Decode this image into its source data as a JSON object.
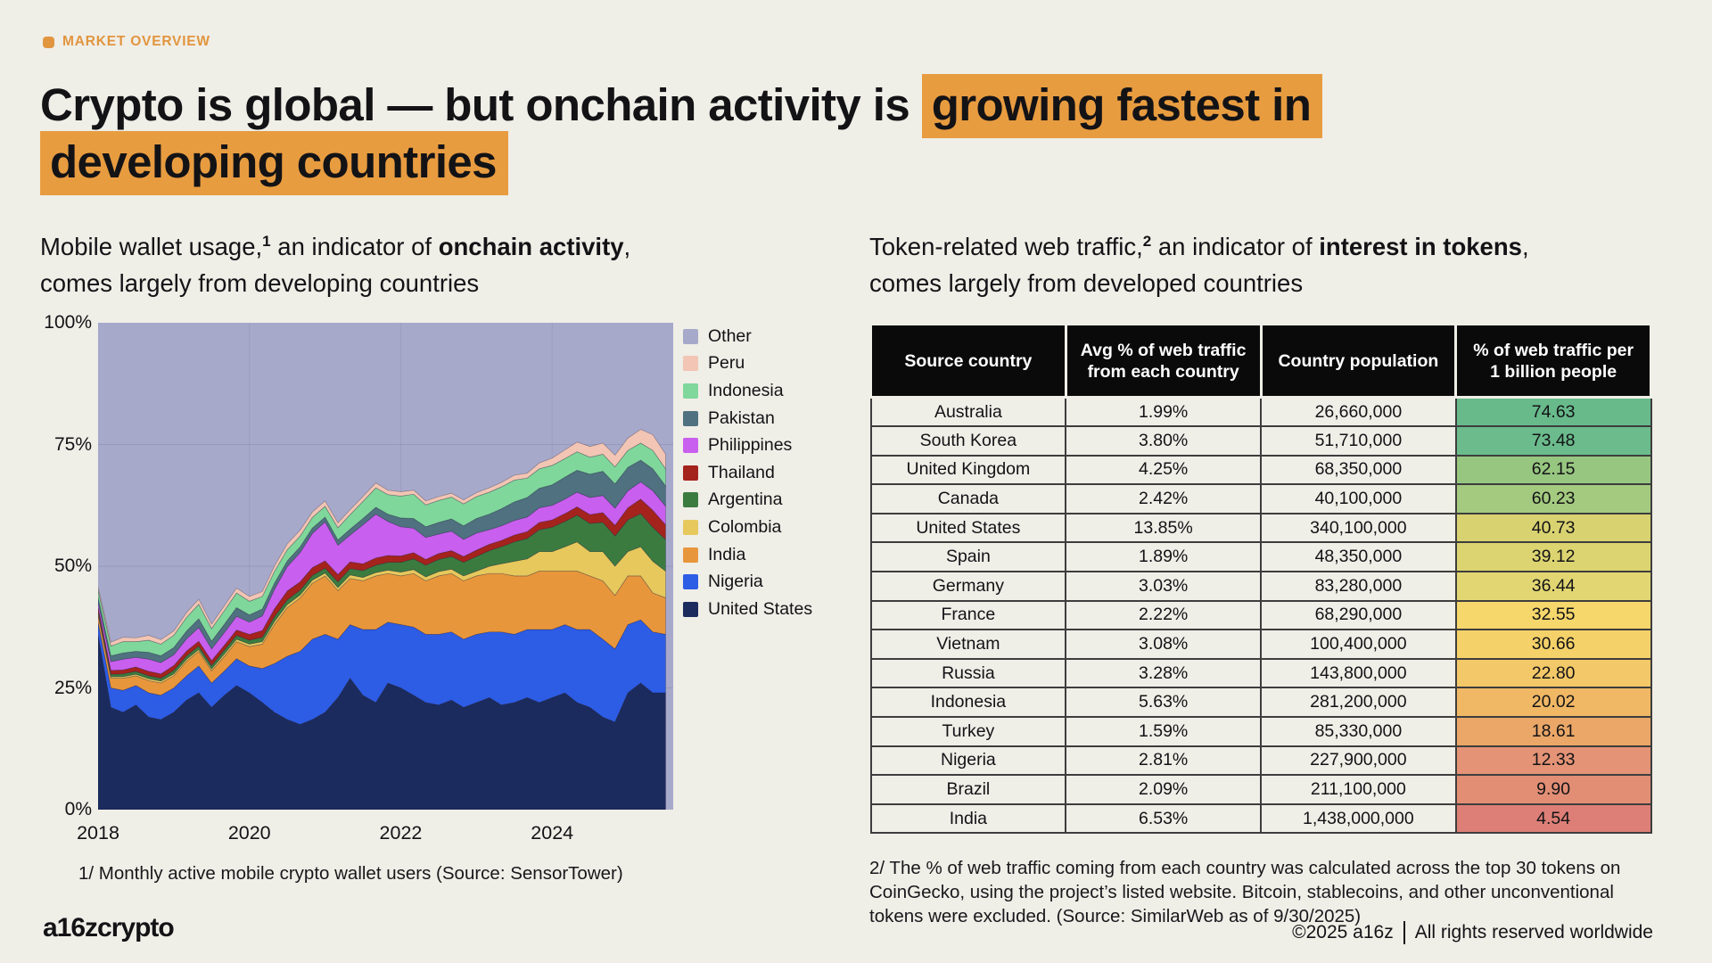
{
  "page": {
    "background": "#efeee7",
    "text_color": "#131316",
    "accent_orange": "#e89c40",
    "eyebrow_orange": "#e2953f"
  },
  "eyebrow": {
    "label": "MARKET OVERVIEW"
  },
  "title": {
    "lines": [
      [
        {
          "text": "Crypto is global — but onchain activity is ",
          "highlight": false
        },
        {
          "text": "growing fastest in",
          "highlight": true
        }
      ],
      [
        {
          "text": "developing countries",
          "highlight": true
        }
      ]
    ]
  },
  "left_panel": {
    "subtitle_lines": [
      [
        {
          "text": "Mobile wallet usage,"
        },
        {
          "text": "1",
          "sup": true
        },
        {
          "text": " an indicator of "
        },
        {
          "text": "onchain activity",
          "bold": true
        },
        {
          "text": ","
        }
      ],
      [
        {
          "text": "comes largely from developing countries"
        }
      ]
    ],
    "footnote": "1/ Monthly active mobile crypto wallet users (Source: SensorTower)"
  },
  "chart_data": {
    "type": "area",
    "stacked": true,
    "units": "percent of total, 0–100",
    "x_ticks": [
      "2018",
      "2020",
      "2022",
      "2024"
    ],
    "x_tick_years": [
      2018,
      2020,
      2022,
      2024
    ],
    "y_ticks": [
      "0%",
      "25%",
      "50%",
      "75%",
      "100%"
    ],
    "y_tick_values": [
      0,
      25,
      50,
      75,
      100
    ],
    "x_range": [
      2018,
      2025.6
    ],
    "y_range": [
      0,
      100
    ],
    "grid": "faint horizontal at 25/50/75 and vertical at 2020/2022/2024",
    "legend_position": "right",
    "legend_top_to_bottom": [
      {
        "label": "Other",
        "color": "#a7a9cb"
      },
      {
        "label": "Peru",
        "color": "#f2c5b4"
      },
      {
        "label": "Indonesia",
        "color": "#7fd79b"
      },
      {
        "label": "Pakistan",
        "color": "#4f7180"
      },
      {
        "label": "Philippines",
        "color": "#c95fee"
      },
      {
        "label": "Thailand",
        "color": "#a5231d"
      },
      {
        "label": "Argentina",
        "color": "#3b7b40"
      },
      {
        "label": "Colombia",
        "color": "#e6c85c"
      },
      {
        "label": "India",
        "color": "#e8963c"
      },
      {
        "label": "Nigeria",
        "color": "#2d5ce5"
      },
      {
        "label": "United States",
        "color": "#1b2b5e"
      }
    ],
    "other": {
      "name": "Other",
      "color": "#a7a9cb",
      "mode": "remainder to 100%"
    },
    "x": [
      2018,
      2018.17,
      2018.33,
      2018.5,
      2018.67,
      2018.83,
      2019,
      2019.17,
      2019.33,
      2019.5,
      2019.67,
      2019.83,
      2020,
      2020.17,
      2020.33,
      2020.5,
      2020.67,
      2020.83,
      2021,
      2021.17,
      2021.33,
      2021.5,
      2021.67,
      2021.83,
      2022,
      2022.17,
      2022.33,
      2022.5,
      2022.67,
      2022.83,
      2023,
      2023.17,
      2023.33,
      2023.5,
      2023.67,
      2023.83,
      2024,
      2024.17,
      2024.33,
      2024.5,
      2024.67,
      2024.83,
      2025,
      2025.17,
      2025.33,
      2025.5
    ],
    "series_bottom_to_top": [
      {
        "name": "United States",
        "color": "#1b2b5e",
        "values": [
          36,
          21,
          20,
          21.5,
          19,
          18.5,
          20,
          22.5,
          24,
          21,
          23.5,
          25.5,
          24,
          22,
          20,
          18.5,
          17.5,
          18.5,
          20,
          23,
          27,
          23.5,
          22,
          26,
          25,
          23.5,
          22,
          21.5,
          22.5,
          21,
          22,
          23,
          21.5,
          22,
          23,
          22,
          23,
          24,
          22,
          21,
          19,
          18,
          24,
          26,
          24,
          24
        ]
      },
      {
        "name": "Nigeria",
        "color": "#2d5ce5",
        "values": [
          2.5,
          4,
          4.5,
          4,
          5,
          5,
          5,
          5,
          5.5,
          5,
          5,
          5.5,
          5.5,
          7,
          10,
          13,
          15,
          16.5,
          16,
          12,
          11,
          13.5,
          15,
          12.5,
          13,
          14,
          14,
          14.5,
          14,
          14,
          14,
          13.5,
          15,
          14,
          14,
          15,
          14,
          14,
          15,
          16,
          16,
          15,
          14,
          13,
          12.5,
          12
        ]
      },
      {
        "name": "India",
        "color": "#e8963c",
        "values": [
          1.5,
          2,
          2.5,
          2,
          2.5,
          2.5,
          2.5,
          3,
          3,
          2.5,
          3,
          3.5,
          4,
          5,
          8,
          10,
          11,
          11.5,
          12,
          10,
          9.5,
          10,
          11,
          10,
          10,
          11,
          11,
          12,
          12,
          12,
          12,
          12,
          12,
          12,
          11,
          12,
          12,
          11,
          12,
          11,
          12,
          11,
          10,
          9,
          8,
          7.5
        ]
      },
      {
        "name": "Colombia",
        "color": "#e6c85c",
        "values": [
          0.3,
          0.3,
          0.3,
          0.3,
          0.4,
          0.4,
          0.4,
          0.4,
          0.4,
          0.4,
          0.5,
          0.5,
          0.5,
          0.5,
          0.6,
          0.6,
          0.6,
          0.6,
          0.6,
          0.6,
          0.7,
          0.7,
          0.7,
          0.7,
          0.8,
          0.8,
          0.8,
          0.9,
          0.9,
          1,
          1,
          1.5,
          2,
          3,
          3.5,
          4,
          4,
          5,
          6,
          5,
          6,
          6,
          5,
          6,
          6.5,
          5.5
        ]
      },
      {
        "name": "Argentina",
        "color": "#3b7b40",
        "values": [
          0.5,
          0.5,
          0.6,
          0.6,
          0.6,
          0.6,
          0.7,
          0.7,
          0.7,
          0.7,
          0.8,
          0.8,
          0.8,
          0.9,
          1,
          1,
          1,
          1,
          1,
          1.2,
          1.3,
          1.4,
          1.5,
          1.6,
          2,
          2.2,
          2.4,
          2.5,
          2.6,
          2.8,
          3,
          3.2,
          3.5,
          4,
          4.2,
          4.5,
          5,
          5.2,
          5.5,
          5.8,
          6,
          6.2,
          6.5,
          6.8,
          7,
          6.5
        ]
      },
      {
        "name": "Thailand",
        "color": "#a5231d",
        "values": [
          0.8,
          0.8,
          0.8,
          0.9,
          0.9,
          0.9,
          1,
          1,
          1,
          1,
          1,
          1.1,
          1.2,
          1.4,
          1.6,
          1.8,
          1.7,
          1.6,
          1.5,
          1.5,
          1.4,
          1.4,
          1.5,
          1.4,
          1.3,
          1.3,
          1.2,
          1.2,
          1.2,
          1.2,
          1.3,
          1.3,
          1.3,
          1.4,
          1.4,
          1.5,
          1.5,
          1.6,
          1.7,
          1.8,
          2,
          2.2,
          2.5,
          3,
          3.5,
          3
        ]
      },
      {
        "name": "Philippines",
        "color": "#c95fee",
        "values": [
          1,
          1.8,
          2.2,
          2,
          2.5,
          2.3,
          2.2,
          2.5,
          2.8,
          2.4,
          2.6,
          2.8,
          2.5,
          3,
          4,
          5,
          6,
          7,
          8,
          6,
          5.5,
          8,
          9,
          7,
          6,
          5,
          4.5,
          4,
          4,
          3.5,
          3.5,
          3,
          3,
          3,
          3,
          3,
          3,
          3,
          3,
          3.5,
          3.5,
          3.5,
          3.5,
          3.5,
          4,
          3.8
        ]
      },
      {
        "name": "Pakistan",
        "color": "#4f7180",
        "values": [
          1,
          1.2,
          1.3,
          1.2,
          1.4,
          1.4,
          1.5,
          1.6,
          1.8,
          1.6,
          1.7,
          1.8,
          1.5,
          1.4,
          1.3,
          1.2,
          1.2,
          1.1,
          1,
          1.1,
          1.2,
          1.3,
          1.4,
          1.5,
          1.8,
          2,
          2.2,
          2.4,
          2.5,
          2.8,
          3,
          3.2,
          3.5,
          3.8,
          4,
          4,
          4.2,
          4.5,
          4.5,
          4.8,
          5,
          5,
          4.8,
          4.5,
          4.5,
          4.2
        ]
      },
      {
        "name": "Indonesia",
        "color": "#7fd79b",
        "values": [
          1.5,
          2,
          2.3,
          2,
          2.5,
          2.4,
          2.5,
          2.8,
          3,
          2.6,
          2.8,
          3,
          2.8,
          2.6,
          2.4,
          2.3,
          2.2,
          2.2,
          2.2,
          2.5,
          3,
          3.5,
          4,
          4,
          4.5,
          5,
          4.5,
          4.5,
          4.5,
          4.5,
          4.5,
          4.5,
          4.5,
          4.5,
          4,
          4,
          4,
          3.8,
          3.8,
          3.5,
          3.5,
          3.5,
          3.5,
          3.5,
          3.8,
          3.5
        ]
      },
      {
        "name": "Peru",
        "color": "#f2c5b4",
        "values": [
          0.6,
          0.8,
          0.9,
          0.8,
          1,
          0.9,
          0.9,
          1,
          1,
          0.9,
          1,
          1,
          1,
          1,
          1.1,
          1.2,
          1.2,
          1.1,
          1.1,
          1,
          1,
          1,
          1,
          0.9,
          0.9,
          0.8,
          0.8,
          0.8,
          0.8,
          0.8,
          0.8,
          0.9,
          0.9,
          1,
          1,
          1.2,
          1.5,
          1.8,
          2,
          2.2,
          2.3,
          2.4,
          2.5,
          2.8,
          3.2,
          3
        ]
      }
    ]
  },
  "right_panel": {
    "subtitle_lines": [
      [
        {
          "text": "Token-related web traffic,"
        },
        {
          "text": "2",
          "sup": true
        },
        {
          "text": " an indicator of "
        },
        {
          "text": "interest in tokens",
          "bold": true
        },
        {
          "text": ","
        }
      ],
      [
        {
          "text": "comes largely from developed countries"
        }
      ]
    ],
    "table": {
      "headers": [
        "Source country",
        "Avg % of web traffic from each country",
        "Country population",
        "% of web traffic per 1 billion people"
      ],
      "rows": [
        {
          "country": "Australia",
          "traffic_pct": "1.99%",
          "population": "26,660,000",
          "per_billion": "74.63",
          "color": "#68ba8b"
        },
        {
          "country": "South Korea",
          "traffic_pct": "3.80%",
          "population": "51,710,000",
          "per_billion": "73.48",
          "color": "#6bbb8c"
        },
        {
          "country": "United Kingdom",
          "traffic_pct": "4.25%",
          "population": "68,350,000",
          "per_billion": "62.15",
          "color": "#97c680"
        },
        {
          "country": "Canada",
          "traffic_pct": "2.42%",
          "population": "40,100,000",
          "per_billion": "60.23",
          "color": "#a4ca7f"
        },
        {
          "country": "United States",
          "traffic_pct": "13.85%",
          "population": "340,100,000",
          "per_billion": "40.73",
          "color": "#d9d271"
        },
        {
          "country": "Spain",
          "traffic_pct": "1.89%",
          "population": "48,350,000",
          "per_billion": "39.12",
          "color": "#dcd470"
        },
        {
          "country": "Germany",
          "traffic_pct": "3.03%",
          "population": "83,280,000",
          "per_billion": "36.44",
          "color": "#e1d672"
        },
        {
          "country": "France",
          "traffic_pct": "2.22%",
          "population": "68,290,000",
          "per_billion": "32.55",
          "color": "#f6d76c"
        },
        {
          "country": "Vietnam",
          "traffic_pct": "3.08%",
          "population": "100,400,000",
          "per_billion": "30.66",
          "color": "#f5d169"
        },
        {
          "country": "Russia",
          "traffic_pct": "3.28%",
          "population": "143,800,000",
          "per_billion": "22.80",
          "color": "#f3c868"
        },
        {
          "country": "Indonesia",
          "traffic_pct": "5.63%",
          "population": "281,200,000",
          "per_billion": "20.02",
          "color": "#f0b765"
        },
        {
          "country": "Turkey",
          "traffic_pct": "1.59%",
          "population": "85,330,000",
          "per_billion": "18.61",
          "color": "#eaa767"
        },
        {
          "country": "Nigeria",
          "traffic_pct": "2.81%",
          "population": "227,900,000",
          "per_billion": "12.33",
          "color": "#e49376"
        },
        {
          "country": "Brazil",
          "traffic_pct": "2.09%",
          "population": "211,100,000",
          "per_billion": "9.90",
          "color": "#e28e75"
        },
        {
          "country": "India",
          "traffic_pct": "6.53%",
          "population": "1,438,000,000",
          "per_billion": "4.54",
          "color": "#dd7f77"
        }
      ]
    },
    "footnote": "2/ The % of web traffic coming from each country was calculated across the top 30 tokens on CoinGecko, using the project’s listed website. Bitcoin, stablecoins, and other unconventional tokens were excluded. (Source: SimilarWeb as of 9/30/2025)"
  },
  "footer": {
    "logo": "a16zcrypto",
    "copyright": "©2025 a16z",
    "rights": "All rights reserved worldwide"
  }
}
